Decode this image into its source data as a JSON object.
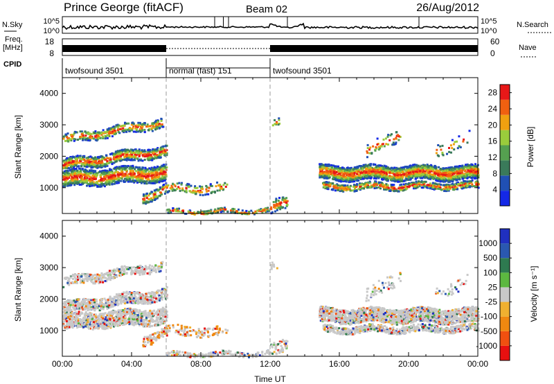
{
  "header": {
    "station": "Prince George (fitACF)",
    "beam": "Beam 02",
    "date": "26/Aug/2012"
  },
  "side_labels": {
    "nsky": "N.Sky",
    "nsearch": "N.Search",
    "freq": "Freq.",
    "freq_unit": "[MHz]",
    "nave": "Nave",
    "cpid": "CPID"
  },
  "noise_panel": {
    "top_tick": "10^5",
    "bottom_tick": "10^0",
    "right_top": "10^5",
    "right_bottom": "10^0"
  },
  "freq_panel": {
    "left_ticks": [
      "18",
      "8"
    ],
    "right_ticks": [
      "60",
      "0"
    ]
  },
  "cpid_segments": [
    {
      "label": "twofsound 3501",
      "start_h": 0,
      "end_h": 6
    },
    {
      "label": "normal (fast) 151",
      "start_h": 6,
      "end_h": 12
    },
    {
      "label": "twofsound 3501",
      "start_h": 12,
      "end_h": 24
    }
  ],
  "colors": {
    "power_scale": [
      "#1428e6",
      "#2050b4",
      "#3a7a5a",
      "#55a050",
      "#9acc3c",
      "#f0a010",
      "#f06010",
      "#e81818"
    ],
    "velocity_scale": [
      "#e81010",
      "#f05010",
      "#f08810",
      "#f0b030",
      "#c8c8c8",
      "#5cb840",
      "#2e7a50",
      "#2a58b0",
      "#2030c0"
    ]
  },
  "chart_data": [
    {
      "type": "heatmap",
      "title": "",
      "ylabel": "Slant Range [km]",
      "xlabel": "",
      "x_range_h": [
        0,
        24
      ],
      "ylim": [
        180,
        4500
      ],
      "y_ticks": [
        "1000",
        "2000",
        "3000",
        "4000"
      ],
      "colorbar": {
        "label": "Power [dB]",
        "ticks": [
          "4",
          "8",
          "12",
          "16",
          "20",
          "24",
          "28"
        ],
        "range": [
          0,
          30
        ]
      }
    },
    {
      "type": "heatmap",
      "title": "",
      "ylabel": "Slant Range [km]",
      "xlabel": "Time UT",
      "x_range_h": [
        0,
        24
      ],
      "ylim": [
        180,
        4500
      ],
      "x_ticks": [
        "00:00",
        "04:00",
        "08:00",
        "12:00",
        "16:00",
        "20:00",
        "00:00"
      ],
      "y_ticks": [
        "1000",
        "2000",
        "3000",
        "4000"
      ],
      "colorbar": {
        "label": "Velocity [m s⁻¹]",
        "ticks": [
          "1000",
          "500",
          "100",
          "25",
          "-25",
          "-100",
          "-500",
          "-1000"
        ]
      }
    }
  ]
}
